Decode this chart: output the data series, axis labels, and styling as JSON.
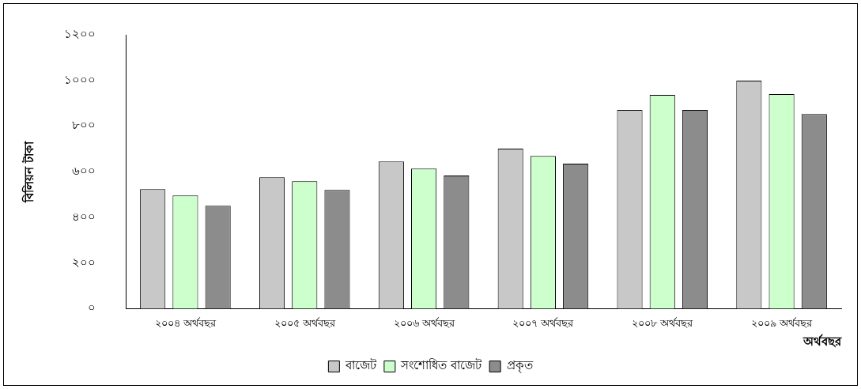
{
  "chart_data": {
    "type": "bar",
    "xlabel": "অর্থবছর",
    "ylabel": "বিলিয়ন টাকা",
    "categories": [
      "২০০৪ অর্থবছর",
      "২০০৫ অর্থবছর",
      "২০০৬ অর্থবছর",
      "২০০৭ অর্থবছর",
      "২০০৮ অর্থবছর",
      "২০০৯ অর্থবছর"
    ],
    "series": [
      {
        "name": "বাজেট",
        "color": "#c8c8c8",
        "values": [
          524,
          576,
          645,
          701,
          871,
          999
        ]
      },
      {
        "name": "সংশোধিত বাজেট",
        "color": "#ccffcc",
        "values": [
          496,
          558,
          614,
          669,
          937,
          940
        ]
      },
      {
        "name": "প্রকৃত",
        "color": "#8c8c8c",
        "values": [
          451,
          520,
          583,
          635,
          871,
          853
        ]
      }
    ],
    "ylim": [
      0,
      1200
    ],
    "yticks": [
      {
        "value": 0,
        "label": "০"
      },
      {
        "value": 200,
        "label": "২০০"
      },
      {
        "value": 400,
        "label": "৪০০"
      },
      {
        "value": 600,
        "label": "৬০০"
      },
      {
        "value": 800,
        "label": "৮০০"
      },
      {
        "value": 1000,
        "label": "১০০০"
      },
      {
        "value": 1200,
        "label": "১২০০"
      }
    ],
    "grid": false,
    "legend": "bottom"
  }
}
